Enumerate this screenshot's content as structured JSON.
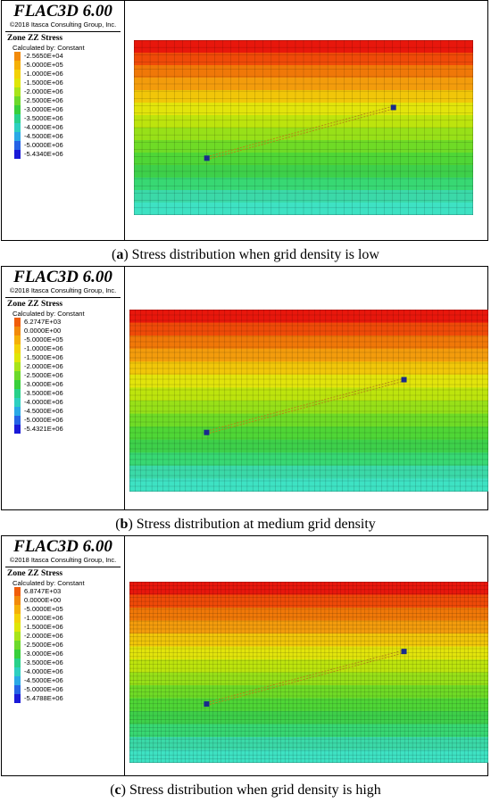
{
  "colors": {
    "bands": [
      "#e8170c",
      "#ef4a08",
      "#f07808",
      "#f39c0c",
      "#f1c609",
      "#e2e40b",
      "#bde40d",
      "#98e018",
      "#6fdb26",
      "#4fd636",
      "#3ed04a",
      "#38d873",
      "#3bd9a8",
      "#3ee2c3"
    ],
    "legend": [
      "#e31b12",
      "#f05d0a",
      "#f28a0a",
      "#f5b007",
      "#f3d206",
      "#dfe607",
      "#a8e41a",
      "#6cd92b",
      "#38cf3b",
      "#28d18a",
      "#2ed0c0",
      "#2aa9e6",
      "#2563e6",
      "#1a1ad8"
    ],
    "marker": "#1a2a8c",
    "connector": "#b48a16"
  },
  "panels": [
    {
      "brand": "FLAC3D 6.00",
      "copyright": "©2018 Itasca Consulting Group, Inc.",
      "contour_title": "Zone ZZ Stress",
      "calculated_by": "Calculated by: Constant",
      "legend": [
        "-2.5650E+04",
        "-5.0000E+05",
        "-1.0000E+06",
        "-1.5000E+06",
        "-2.0000E+06",
        "-2.5000E+06",
        "-3.0000E+06",
        "-3.5000E+06",
        "-4.0000E+06",
        "-4.5000E+06",
        "-5.0000E+06",
        "-5.4340E+06"
      ],
      "caption_label": "a",
      "caption_text": " Stress distribution when grid density is low",
      "grid_cols": 42,
      "grid_rows": 24
    },
    {
      "brand": "FLAC3D 6.00",
      "copyright": "©2018 Itasca Consulting Group, Inc.",
      "contour_title": "Zone ZZ Stress",
      "calculated_by": "Calculated by: Constant",
      "legend": [
        "6.2747E+03",
        "0.0000E+00",
        "-5.0000E+05",
        "-1.0000E+06",
        "-1.5000E+06",
        "-2.0000E+06",
        "-2.5000E+06",
        "-3.0000E+06",
        "-3.5000E+06",
        "-4.0000E+06",
        "-4.5000E+06",
        "-5.0000E+06",
        "-5.4321E+06"
      ],
      "caption_label": "b",
      "caption_text": " Stress distribution at medium grid density",
      "grid_cols": 64,
      "grid_rows": 34
    },
    {
      "brand": "FLAC3D 6.00",
      "copyright": "©2018 Itasca Consulting Group, Inc.",
      "contour_title": "Zone ZZ Stress",
      "calculated_by": "Calculated by: Constant",
      "legend": [
        "6.8747E+03",
        "0.0000E+00",
        "-5.0000E+05",
        "-1.0000E+06",
        "-1.5000E+06",
        "-2.0000E+06",
        "-2.5000E+06",
        "-3.0000E+06",
        "-3.5000E+06",
        "-4.0000E+06",
        "-4.5000E+06",
        "-5.0000E+06",
        "-5.4788E+06"
      ],
      "caption_label": "c",
      "caption_text": " Stress distribution when grid density is high",
      "grid_cols": 90,
      "grid_rows": 46
    }
  ]
}
